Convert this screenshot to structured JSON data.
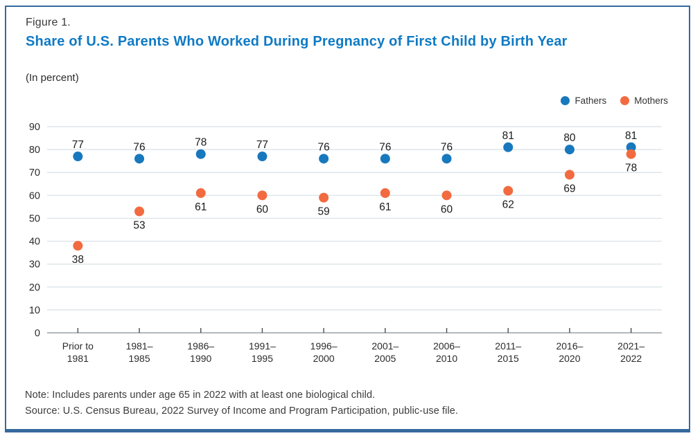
{
  "figure": {
    "label": "Figure 1.",
    "title": "Share of U.S. Parents Who Worked During Pregnancy of First Child by Birth Year",
    "subtitle": "(In percent)",
    "note": "Note: Includes parents under age 65 in 2022 with at least one biological child.",
    "source": "Source: U.S. Census Bureau, 2022 Survey of Income and Program Participation, public-use file."
  },
  "legend": [
    {
      "label": "Fathers",
      "color": "#1878be"
    },
    {
      "label": "Mothers",
      "color": "#f26b40"
    }
  ],
  "colors": {
    "title_accent": "#0e7ac4",
    "frame_border": "#34699e",
    "grid_line": "#d5e0e6",
    "zero_axis": "#97a1a8",
    "tick": "#4a4a4a",
    "axis_text": "#2b2b2b",
    "point_label_text": "#1a1a1a",
    "fathers": "#1878be",
    "mothers": "#f26b40"
  },
  "chart_data": {
    "type": "scatter",
    "title": "Share of U.S. Parents Who Worked During Pregnancy of First Child by Birth Year",
    "subtitle": "(In percent)",
    "categories": [
      "Prior to 1981",
      "1981–1985",
      "1986–1990",
      "1991–1995",
      "1996–2000",
      "2001–2005",
      "2006–2010",
      "2011–2015",
      "2016–2020",
      "2021–2022"
    ],
    "tick_lines": [
      [
        "Prior to",
        "1981"
      ],
      [
        "1981–",
        "1985"
      ],
      [
        "1986–",
        "1990"
      ],
      [
        "1991–",
        "1995"
      ],
      [
        "1996–",
        "2000"
      ],
      [
        "2001–",
        "2005"
      ],
      [
        "2006–",
        "2010"
      ],
      [
        "2011–",
        "2015"
      ],
      [
        "2016–",
        "2020"
      ],
      [
        "2021–",
        "2022"
      ]
    ],
    "series": [
      {
        "name": "Fathers",
        "color": "#1878be",
        "label_position": "above",
        "values": [
          77,
          76,
          78,
          77,
          76,
          76,
          76,
          81,
          80,
          81
        ]
      },
      {
        "name": "Mothers",
        "color": "#f26b40",
        "label_position": "below",
        "values": [
          38,
          53,
          61,
          60,
          59,
          61,
          60,
          62,
          69,
          78
        ]
      }
    ],
    "ylim": [
      0,
      90
    ],
    "ytick_step": 10,
    "grid": "horizontal",
    "legend_position": "top-right",
    "point_labels": true
  }
}
